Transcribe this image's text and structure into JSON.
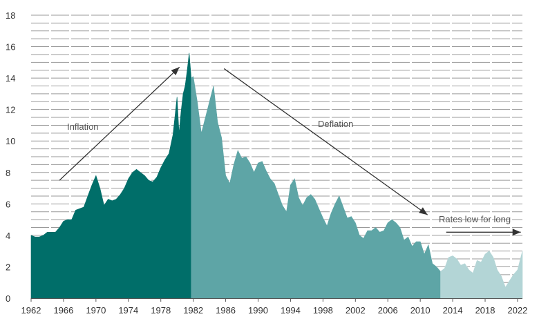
{
  "chart_data": {
    "type": "area",
    "title": "",
    "xlabel": "",
    "ylabel": "",
    "xlim": [
      1962,
      2022.6
    ],
    "ylim": [
      0,
      18
    ],
    "grid": "horizontal dashed",
    "y_ticks": [
      "0",
      "2",
      "4",
      "6",
      "8",
      "10",
      "12",
      "14",
      "16",
      "18"
    ],
    "x_ticks": [
      "1962",
      "1966",
      "1970",
      "1974",
      "1978",
      "1982",
      "1986",
      "1990",
      "1994",
      "1998",
      "2002",
      "2006",
      "2010",
      "2014",
      "2018",
      "2022"
    ],
    "series": [
      {
        "color": "#006e69",
        "x": [
          1962,
          1962.5,
          1963,
          1963.5,
          1964,
          1964.5,
          1965,
          1965.5,
          1966,
          1966.5,
          1967,
          1967.5,
          1968,
          1968.5,
          1969,
          1969.5,
          1970,
          1970.5,
          1971,
          1971.5,
          1972,
          1972.5,
          1973,
          1973.5,
          1974,
          1974.5,
          1975,
          1975.5,
          1976,
          1976.5,
          1977,
          1977.5,
          1978,
          1978.5,
          1979,
          1979.5,
          1980,
          1980.25,
          1980.5,
          1980.75,
          1981,
          1981.25,
          1981.5,
          1981.75
        ],
        "values": [
          4.0,
          3.9,
          3.9,
          4.0,
          4.2,
          4.2,
          4.2,
          4.5,
          4.9,
          5.0,
          5.0,
          5.6,
          5.7,
          5.8,
          6.5,
          7.2,
          7.8,
          7.0,
          5.9,
          6.3,
          6.2,
          6.3,
          6.6,
          7.0,
          7.6,
          8.0,
          8.2,
          8.0,
          7.8,
          7.5,
          7.4,
          7.7,
          8.3,
          8.8,
          9.2,
          10.4,
          12.8,
          10.5,
          11.9,
          13.0,
          13.5,
          14.5,
          15.6,
          14.0
        ]
      },
      {
        "color": "#5ea5a6",
        "x": [
          1981.75,
          1982,
          1982.5,
          1983,
          1983.5,
          1984,
          1984.5,
          1985,
          1985.5,
          1986,
          1986.5,
          1987,
          1987.5,
          1988,
          1988.5,
          1989,
          1989.5,
          1990,
          1990.5,
          1991,
          1991.5,
          1992,
          1992.5,
          1993,
          1993.5,
          1994,
          1994.5,
          1995,
          1995.5,
          1996,
          1996.5,
          1997,
          1997.5,
          1998,
          1998.5,
          1999,
          1999.5,
          2000,
          2000.5,
          2001,
          2001.5,
          2002,
          2002.5,
          2003,
          2003.5,
          2004,
          2004.5,
          2005,
          2005.5,
          2006,
          2006.5,
          2007,
          2007.5,
          2008,
          2008.5,
          2009,
          2009.5,
          2010,
          2010.5,
          2011,
          2011.5,
          2012,
          2012.5
        ],
        "values": [
          14.0,
          14.1,
          12.5,
          10.5,
          11.5,
          12.5,
          13.5,
          11.2,
          10.2,
          7.8,
          7.3,
          8.5,
          9.4,
          8.9,
          9.0,
          8.6,
          8.0,
          8.6,
          8.7,
          8.1,
          7.6,
          7.3,
          6.6,
          5.9,
          5.5,
          7.2,
          7.6,
          6.4,
          5.9,
          6.4,
          6.6,
          6.3,
          5.7,
          5.1,
          4.6,
          5.4,
          6.0,
          6.5,
          5.8,
          5.1,
          5.2,
          4.8,
          4.0,
          3.8,
          4.3,
          4.3,
          4.5,
          4.2,
          4.3,
          4.8,
          5.0,
          4.8,
          4.5,
          3.7,
          3.9,
          3.3,
          3.6,
          3.6,
          2.8,
          3.4,
          2.2,
          2.0,
          1.7
        ]
      },
      {
        "color": "#b3d5d6",
        "x": [
          2012.5,
          2013,
          2013.5,
          2014,
          2014.5,
          2015,
          2015.5,
          2016,
          2016.5,
          2017,
          2017.5,
          2018,
          2018.5,
          2019,
          2019.5,
          2020,
          2020.5,
          2021,
          2021.5,
          2022,
          2022.6
        ],
        "values": [
          1.7,
          1.9,
          2.6,
          2.7,
          2.5,
          2.1,
          2.2,
          1.8,
          1.6,
          2.4,
          2.3,
          2.8,
          3.0,
          2.6,
          1.8,
          1.4,
          0.7,
          1.1,
          1.5,
          1.8,
          3.0
        ]
      }
    ],
    "annotations": {
      "inflation": "Inflation",
      "deflation": "Deflation",
      "low": "Rates low for long"
    }
  }
}
